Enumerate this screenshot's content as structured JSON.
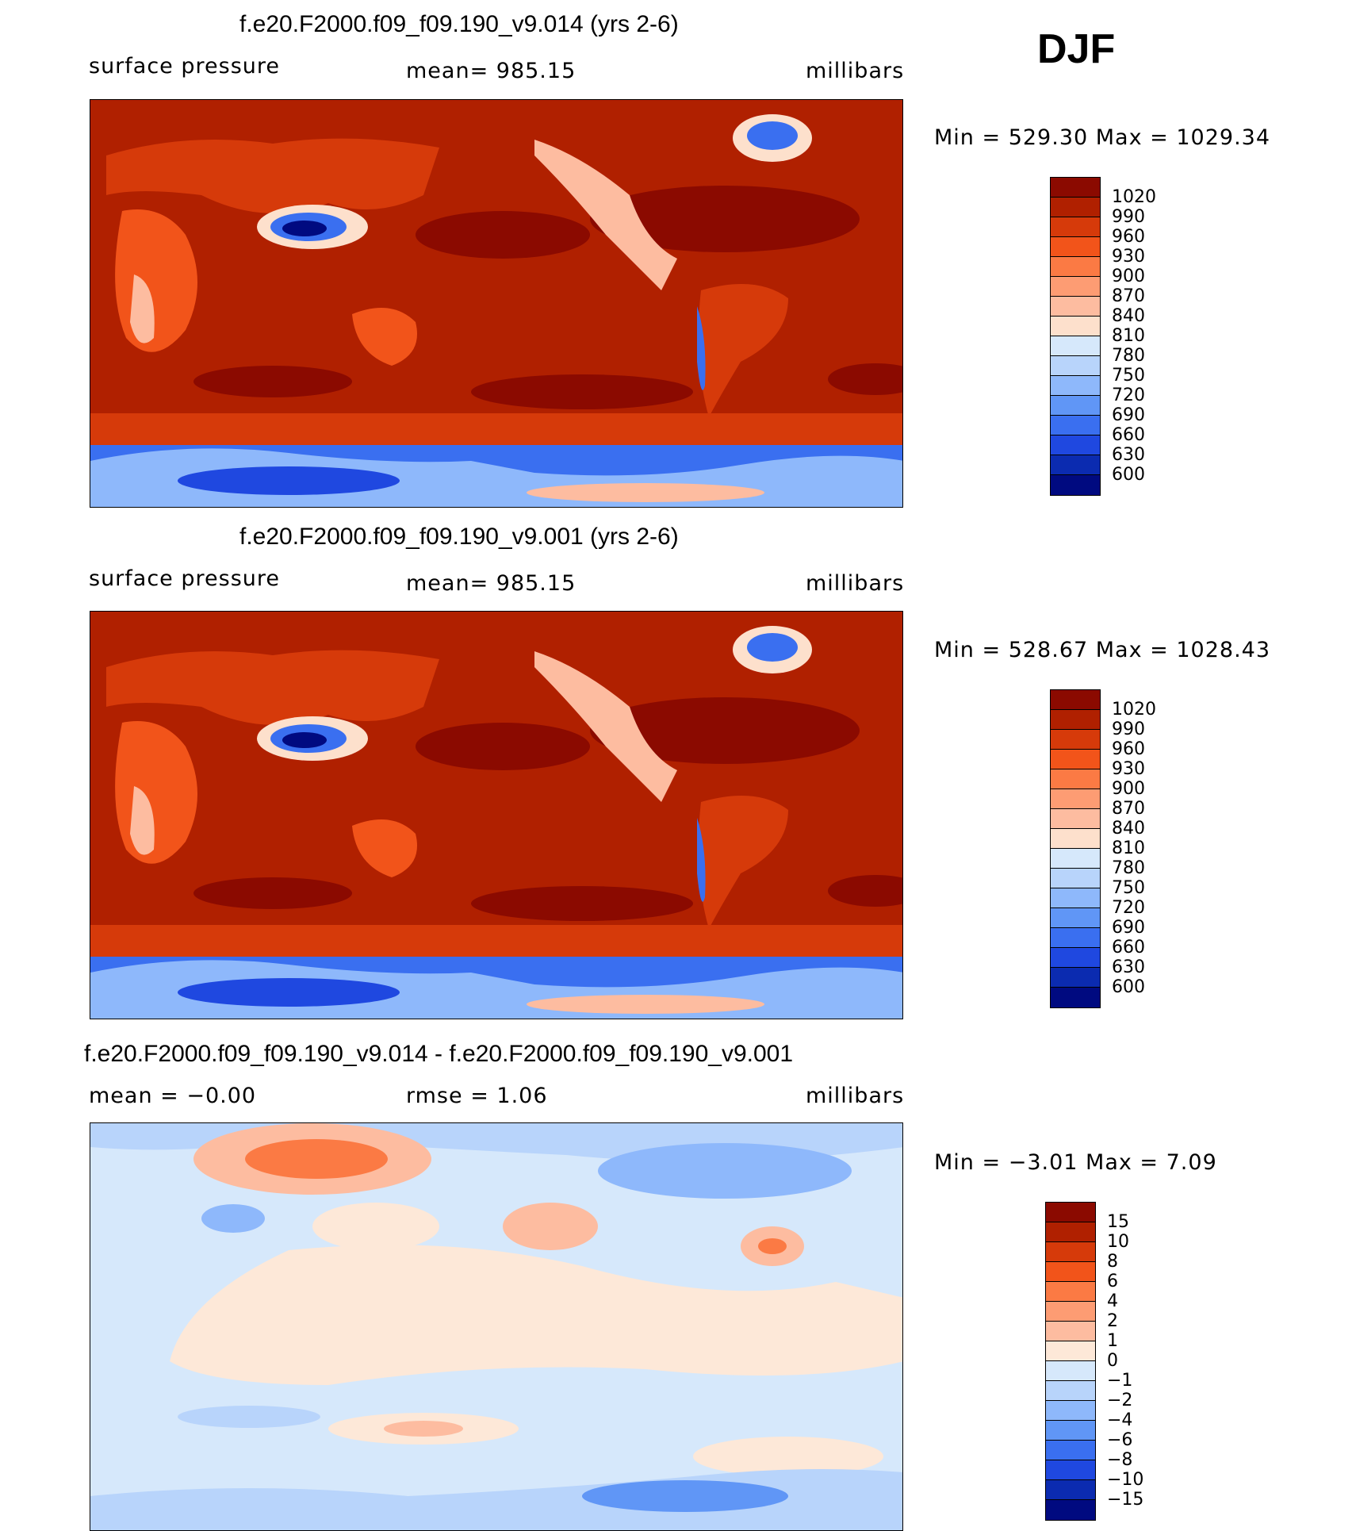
{
  "season": "DJF",
  "panels": [
    {
      "title": "f.e20.F2000.f09_f09.190_v9.014 (yrs 2-6)",
      "left_label": "surface pressure",
      "center_label": "mean= 985.15",
      "right_label": "millibars",
      "minmax": "Min = 529.30 Max = 1029.34",
      "type": "field"
    },
    {
      "title": "f.e20.F2000.f09_f09.190_v9.001 (yrs 2-6)",
      "left_label": "surface pressure",
      "center_label": "mean= 985.15",
      "right_label": "millibars",
      "minmax": "Min = 528.67 Max = 1028.43",
      "type": "field"
    },
    {
      "title": "f.e20.F2000.f09_f09.190_v9.014 - f.e20.F2000.f09_f09.190_v9.001",
      "left_label": "mean = −0.00",
      "center_label": "rmse = 1.06",
      "right_label": "millibars",
      "minmax": "Min = −3.01 Max = 7.09",
      "type": "diff"
    }
  ],
  "colorbars": {
    "field": {
      "labels": [
        "1020",
        "990",
        "960",
        "930",
        "900",
        "870",
        "840",
        "810",
        "780",
        "750",
        "720",
        "690",
        "660",
        "630",
        "600"
      ],
      "colors": [
        "#8b0a00",
        "#b02000",
        "#d63a0a",
        "#f2541a",
        "#fb7a44",
        "#fd9c73",
        "#fdbca0",
        "#fde0cc",
        "#d6e8fb",
        "#b8d4fb",
        "#8eb8fb",
        "#6096f6",
        "#3a6ff0",
        "#1f48e0",
        "#0b2bb0",
        "#000a80"
      ]
    },
    "diff": {
      "labels": [
        "15",
        "10",
        "8",
        "6",
        "4",
        "2",
        "1",
        "0",
        "−1",
        "−2",
        "−4",
        "−6",
        "−8",
        "−10",
        "−15"
      ],
      "colors": [
        "#8b0a00",
        "#b02000",
        "#d63a0a",
        "#f2541a",
        "#fb7a44",
        "#fd9c73",
        "#fdbca0",
        "#fde8d8",
        "#d6e8fb",
        "#b8d4fb",
        "#8eb8fb",
        "#6096f6",
        "#3a6ff0",
        "#1f48e0",
        "#0b2bb0",
        "#000a80"
      ]
    }
  }
}
